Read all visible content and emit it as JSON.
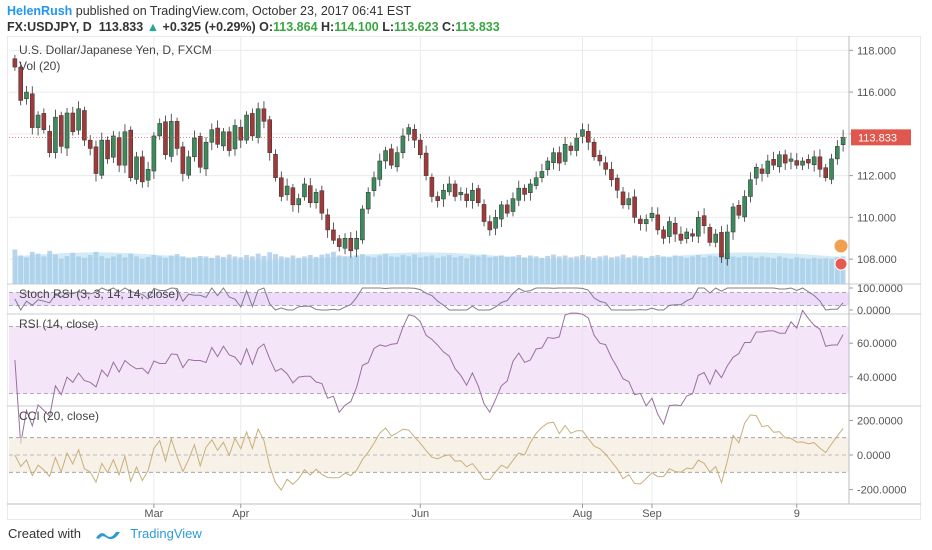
{
  "header": {
    "author": "HelenRush",
    "published_text": "published on TradingView.com, October 23, 2017 06:41 EST",
    "symbol": "FX:USDJPY, D",
    "last_price": "113.833",
    "change": "+0.325 (+0.29%)",
    "o_label": "O:",
    "o_value": "113.864",
    "h_label": "H:",
    "h_value": "114.100",
    "l_label": "L:",
    "l_value": "113.623",
    "c_label": "C:",
    "c_value": "113.833"
  },
  "footer": {
    "created_with": "Created with",
    "brand": "TradingView"
  },
  "colors": {
    "up": "#3d8a5c",
    "down": "#a03a3a",
    "volume": "#a9c9e6",
    "stoch_fill": "#e7cff7",
    "rsi_fill": "#f2dcf7",
    "cci_fill": "#f5ece0",
    "rsi_line": "#9a6fa0",
    "cci_line": "#c7b07a",
    "price_label_bg": "#e0584d",
    "grid": "#e8ecef",
    "tv_blue": "#2e9bd6"
  },
  "chart_data": [
    {
      "type": "candlestick",
      "title": "U.S. Dollar/Japanese Yen, D, FXCM",
      "subtitle": "Vol (20)",
      "ylim": [
        107,
        118.4
      ],
      "y_ticks": [
        "118.000",
        "116.000",
        "114.000",
        "112.000",
        "110.000",
        "108.000"
      ],
      "last_price_label": "113.833",
      "x_ticks": [
        "Mar",
        "Apr",
        "Jun",
        "Aug",
        "Sep",
        "9"
      ],
      "close": [
        117.2,
        115.6,
        116.0,
        114.3,
        114.9,
        114.2,
        113.1,
        114.8,
        113.4,
        115.0,
        114.1,
        115.2,
        113.7,
        113.3,
        112.1,
        113.7,
        112.8,
        113.9,
        112.5,
        114.1,
        111.9,
        112.9,
        111.7,
        112.3,
        113.9,
        114.5,
        113.0,
        114.6,
        113.3,
        112.1,
        112.9,
        113.8,
        112.4,
        113.6,
        114.2,
        113.5,
        114.1,
        113.2,
        114.4,
        113.7,
        114.9,
        113.9,
        115.2,
        114.6,
        113.1,
        111.9,
        111.0,
        111.5,
        110.6,
        110.9,
        111.6,
        110.7,
        111.2,
        110.2,
        109.4,
        108.9,
        108.6,
        109.0,
        108.4,
        109.0,
        110.4,
        111.2,
        111.9,
        112.7,
        113.2,
        112.5,
        113.1,
        113.9,
        114.3,
        113.7,
        113.0,
        112.0,
        111.0,
        110.8,
        111.3,
        111.6,
        111.0,
        111.2,
        110.8,
        111.3,
        110.7,
        109.8,
        109.4,
        110.0,
        110.6,
        110.2,
        110.9,
        111.4,
        111.1,
        111.6,
        111.9,
        112.2,
        112.7,
        113.1,
        112.6,
        113.5,
        113.2,
        113.8,
        114.2,
        113.6,
        112.9,
        112.7,
        112.3,
        111.8,
        111.3,
        110.6,
        110.9,
        110.0,
        109.7,
        109.9,
        110.2,
        109.4,
        109.0,
        109.8,
        109.2,
        108.9,
        109.3,
        109.1,
        110.0,
        109.6,
        108.8,
        109.2,
        108.1,
        109.3,
        110.5,
        110.1,
        111.0,
        111.8,
        112.4,
        112.1,
        112.7,
        112.5,
        113.0,
        112.6,
        112.8,
        112.5,
        112.7,
        112.6,
        112.9,
        112.3,
        111.9,
        112.8,
        113.4,
        113.833
      ],
      "volume": [
        0.75,
        0.62,
        0.58,
        0.7,
        0.66,
        0.6,
        0.72,
        0.64,
        0.55,
        0.61,
        0.68,
        0.6,
        0.57,
        0.63,
        0.7,
        0.61,
        0.56,
        0.6,
        0.64,
        0.58,
        0.66,
        0.6,
        0.55,
        0.59,
        0.63,
        0.6,
        0.57,
        0.62,
        0.65,
        0.6,
        0.56,
        0.58,
        0.61,
        0.6,
        0.57,
        0.62,
        0.59,
        0.64,
        0.6,
        0.58,
        0.63,
        0.6,
        0.66,
        0.61,
        0.69,
        0.65,
        0.6,
        0.58,
        0.62,
        0.57,
        0.6,
        0.63,
        0.59,
        0.64,
        0.66,
        0.7,
        0.62,
        0.6,
        0.58,
        0.62,
        0.65,
        0.6,
        0.58,
        0.62,
        0.66,
        0.6,
        0.59,
        0.63,
        0.6,
        0.64,
        0.58,
        0.6,
        0.62,
        0.57,
        0.6,
        0.63,
        0.58,
        0.61,
        0.56,
        0.62,
        0.6,
        0.64,
        0.58,
        0.6,
        0.62,
        0.59,
        0.6,
        0.63,
        0.58,
        0.62,
        0.6,
        0.57,
        0.61,
        0.64,
        0.6,
        0.62,
        0.58,
        0.6,
        0.63,
        0.6,
        0.57,
        0.6,
        0.62,
        0.58,
        0.6,
        0.64,
        0.58,
        0.62,
        0.6,
        0.57,
        0.61,
        0.63,
        0.6,
        0.58,
        0.62,
        0.6,
        0.57,
        0.6,
        0.63,
        0.58,
        0.62,
        0.6,
        0.66,
        0.62,
        0.6,
        0.58,
        0.61,
        0.6,
        0.57,
        0.6,
        0.58,
        0.56,
        0.6,
        0.57,
        0.55,
        0.58,
        0.56,
        0.54,
        0.57,
        0.55,
        0.56,
        0.54,
        0.58,
        0.6
      ]
    },
    {
      "type": "line",
      "title": "Stoch RSI (3, 3, 14, 14, close)",
      "ylim": [
        0,
        100
      ],
      "y_ticks": [
        "100.0000",
        "0.0000"
      ],
      "bands": [
        20,
        80
      ]
    },
    {
      "type": "line",
      "title": "RSI (14, close)",
      "ylim": [
        25,
        75
      ],
      "y_ticks": [
        "60.0000",
        "40.0000"
      ],
      "bands": [
        30,
        70
      ]
    },
    {
      "type": "line",
      "title": "CCI (20, close)",
      "ylim": [
        -260,
        260
      ],
      "y_ticks": [
        "200.0000",
        "0.0000",
        "-200.0000"
      ],
      "bands": [
        -100,
        100
      ]
    }
  ]
}
